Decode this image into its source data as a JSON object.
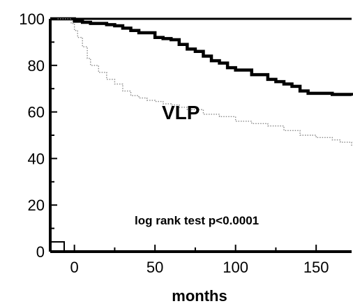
{
  "chart_data": {
    "type": "line",
    "title": "",
    "xlabel": "months",
    "ylabel": "",
    "xlim": [
      -15,
      172
    ],
    "ylim": [
      0,
      100
    ],
    "x_ticks": [
      0,
      50,
      100,
      150
    ],
    "y_ticks": [
      0,
      20,
      40,
      60,
      80,
      100
    ],
    "series": [
      {
        "style": "solid-thick",
        "color": "#000000",
        "points": [
          [
            -15,
            100
          ],
          [
            -5,
            100
          ],
          [
            0,
            99
          ],
          [
            5,
            98.5
          ],
          [
            10,
            98
          ],
          [
            20,
            97.5
          ],
          [
            25,
            97
          ],
          [
            30,
            96
          ],
          [
            35,
            95
          ],
          [
            40,
            94
          ],
          [
            50,
            92
          ],
          [
            55,
            91.5
          ],
          [
            60,
            91
          ],
          [
            65,
            89
          ],
          [
            70,
            87
          ],
          [
            75,
            86
          ],
          [
            80,
            84
          ],
          [
            85,
            82
          ],
          [
            90,
            81
          ],
          [
            95,
            79
          ],
          [
            100,
            78
          ],
          [
            110,
            76
          ],
          [
            120,
            74
          ],
          [
            125,
            73
          ],
          [
            130,
            72
          ],
          [
            135,
            71
          ],
          [
            140,
            69
          ],
          [
            145,
            68
          ],
          [
            150,
            68
          ],
          [
            160,
            67.5
          ],
          [
            172,
            67
          ]
        ]
      },
      {
        "style": "dotted-thin",
        "color": "#888888",
        "points": [
          [
            -15,
            100
          ],
          [
            -5,
            100
          ],
          [
            -2,
            98
          ],
          [
            0,
            95
          ],
          [
            2,
            92
          ],
          [
            5,
            88
          ],
          [
            8,
            83
          ],
          [
            10,
            80
          ],
          [
            15,
            77
          ],
          [
            20,
            74
          ],
          [
            25,
            72
          ],
          [
            30,
            69
          ],
          [
            35,
            67
          ],
          [
            40,
            66
          ],
          [
            45,
            65
          ],
          [
            50,
            64.5
          ],
          [
            55,
            63.5
          ],
          [
            60,
            63
          ],
          [
            65,
            62
          ],
          [
            70,
            61
          ],
          [
            80,
            59
          ],
          [
            90,
            58
          ],
          [
            100,
            56
          ],
          [
            110,
            55
          ],
          [
            120,
            54
          ],
          [
            130,
            52
          ],
          [
            140,
            50
          ],
          [
            150,
            49
          ],
          [
            160,
            48
          ],
          [
            165,
            47
          ],
          [
            172,
            45
          ]
        ]
      }
    ],
    "annotations": {
      "group_label": "VLP",
      "test_label": "log rank test p<0.0001"
    }
  }
}
